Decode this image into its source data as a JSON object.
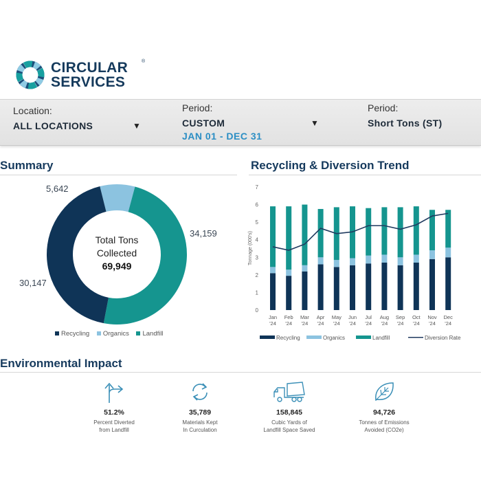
{
  "brand": {
    "line1": "CIRCULAR",
    "line2": "SERVICES",
    "reg": "®"
  },
  "filters": {
    "location": {
      "label": "Location:",
      "value": "ALL LOCATIONS"
    },
    "period": {
      "label": "Period:",
      "value": "CUSTOM",
      "range": "JAN 01 - DEC 31"
    },
    "units": {
      "label": "Period:",
      "value": "Short Tons (ST)"
    }
  },
  "summary": {
    "title": "Summary",
    "center_line1": "Total Tons",
    "center_line2": "Collected",
    "total": "69,949",
    "labels": {
      "organics": "5,642",
      "landfill": "34,159",
      "recycling": "30,147"
    },
    "legend": [
      "Recycling",
      "Organics",
      "Landfill"
    ]
  },
  "trend": {
    "title": "Recycling & Diversion Trend",
    "ylabel": "Tonnage (000's)"
  },
  "colors": {
    "recycling": "#0f3457",
    "organics": "#8cc3e0",
    "landfill": "#15958f",
    "diversion": "#1f3a5f",
    "accent": "#2b8ec4"
  },
  "impact": {
    "title": "Environmental Impact",
    "items": [
      {
        "value": "51.2%",
        "desc1": "Percent Diverted",
        "desc2": "from Landfill"
      },
      {
        "value": "35,789",
        "desc1": "Materials Kept",
        "desc2": "In Curculation"
      },
      {
        "value": "158,845",
        "desc1": "Cubic Yards of",
        "desc2": "Landfill Space Saved"
      },
      {
        "value": "94,726",
        "desc1": "Tonnes of Emissions",
        "desc2": "Avoided (CO2e)"
      }
    ]
  },
  "chart_data": [
    {
      "type": "pie",
      "title": "Summary",
      "categories": [
        "Recycling",
        "Organics",
        "Landfill"
      ],
      "values": [
        30147,
        5642,
        34159
      ],
      "colors": [
        "#0f3457",
        "#8cc3e0",
        "#15958f"
      ],
      "legend": "bottom"
    },
    {
      "type": "bar",
      "title": "Recycling & Diversion Trend",
      "ylabel": "Tonnage (000's)",
      "ylim": [
        0,
        7
      ],
      "yticks": [
        0,
        1,
        2,
        3,
        4,
        5,
        6,
        7
      ],
      "categories": [
        [
          "Jan",
          "'24"
        ],
        [
          "Feb",
          "'24"
        ],
        [
          "Mar",
          "'24"
        ],
        [
          "Apr",
          "'24"
        ],
        [
          "May",
          "'24"
        ],
        [
          "Jun",
          "'24"
        ],
        [
          "Jul",
          "'24"
        ],
        [
          "Aug",
          "'24"
        ],
        [
          "Sep",
          "'24"
        ],
        [
          "Oct",
          "'24"
        ],
        [
          "Nov",
          "'24"
        ],
        [
          "Dec",
          "'24"
        ]
      ],
      "stacked": true,
      "series": [
        {
          "name": "Recycling",
          "values": [
            2.1,
            1.95,
            2.2,
            2.6,
            2.45,
            2.55,
            2.65,
            2.7,
            2.55,
            2.7,
            2.9,
            3.0
          ]
        },
        {
          "name": "Organics",
          "values": [
            0.35,
            0.35,
            0.35,
            0.4,
            0.4,
            0.4,
            0.45,
            0.45,
            0.45,
            0.45,
            0.5,
            0.55
          ]
        },
        {
          "name": "Landfill",
          "values": [
            3.45,
            3.6,
            3.45,
            2.75,
            3.0,
            2.95,
            2.7,
            2.7,
            2.85,
            2.75,
            2.3,
            2.15
          ]
        }
      ],
      "line": {
        "name": "Diversion Rate",
        "values": [
          3.6,
          3.4,
          3.75,
          4.65,
          4.35,
          4.45,
          4.8,
          4.8,
          4.6,
          4.85,
          5.35,
          5.5
        ]
      },
      "legend": "bottom",
      "grid": false
    }
  ]
}
